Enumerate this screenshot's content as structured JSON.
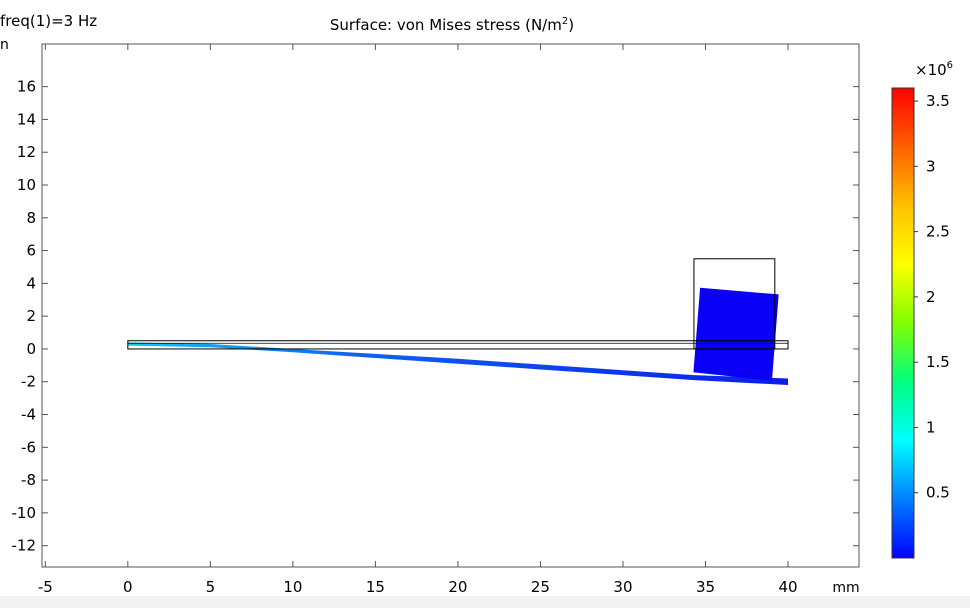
{
  "header": {
    "freq_label": "freq(1)=3 Hz",
    "title_main": "Surface: von Mises stress (N/m",
    "title_sup": "2",
    "title_end": ")"
  },
  "axes": {
    "x_unit": "mm",
    "y_unit_fragment": "n"
  },
  "chart_data": {
    "type": "surface",
    "title": "Surface: von Mises stress (N/m²)",
    "xlabel": "mm",
    "ylabel": "",
    "xlim": [
      -5.2,
      44.3
    ],
    "ylim": [
      -13.3,
      18.6
    ],
    "x_ticks": [
      -5,
      0,
      5,
      10,
      15,
      20,
      25,
      30,
      35,
      40
    ],
    "y_ticks": [
      -12,
      -10,
      -8,
      -6,
      -4,
      -2,
      0,
      2,
      4,
      6,
      8,
      10,
      12,
      14,
      16
    ],
    "undeformed": {
      "beam": {
        "x": [
          0,
          40
        ],
        "y": [
          0,
          0.5
        ]
      },
      "mass": {
        "x": [
          34.3,
          39.2
        ],
        "y": [
          0,
          5.5
        ]
      }
    },
    "deformed_beam_bottom": [
      [
        0,
        0.2
      ],
      [
        5,
        0.1
      ],
      [
        10,
        -0.2
      ],
      [
        15,
        -0.55
      ],
      [
        20,
        -0.9
      ],
      [
        25,
        -1.25
      ],
      [
        30,
        -1.6
      ],
      [
        34.3,
        -1.9
      ],
      [
        40,
        -2.2
      ]
    ],
    "deformed_beam_top": [
      [
        0,
        0.4
      ],
      [
        5,
        0.3
      ],
      [
        10,
        0.0
      ],
      [
        15,
        -0.3
      ],
      [
        20,
        -0.6
      ],
      [
        25,
        -0.95
      ],
      [
        30,
        -1.3
      ],
      [
        34.3,
        -1.6
      ],
      [
        40,
        -1.8
      ]
    ],
    "deformed_mass": [
      [
        34.3,
        -1.4
      ],
      [
        39.0,
        -1.9
      ],
      [
        39.4,
        3.3
      ],
      [
        34.7,
        3.7
      ]
    ],
    "colorbar": {
      "exponent_label": "×10",
      "exponent_sup": "6",
      "range": [
        0,
        3.6
      ],
      "tick_values": [
        0.5,
        1,
        1.5,
        2,
        2.5,
        3,
        3.5
      ],
      "tick_labels": [
        "0.5",
        "1",
        "1.5",
        "2",
        "2.5",
        "3",
        "3.5"
      ],
      "colors": [
        "#0000ff",
        "#0080ff",
        "#00ffff",
        "#00ff80",
        "#80ff00",
        "#ffff00",
        "#ffc000",
        "#ff6000",
        "#ff0000"
      ]
    },
    "colors": {
      "mass_fill": "#0a00f5",
      "beam_dark": "#0a1ee6",
      "beam_light": "#14c8f0"
    }
  }
}
